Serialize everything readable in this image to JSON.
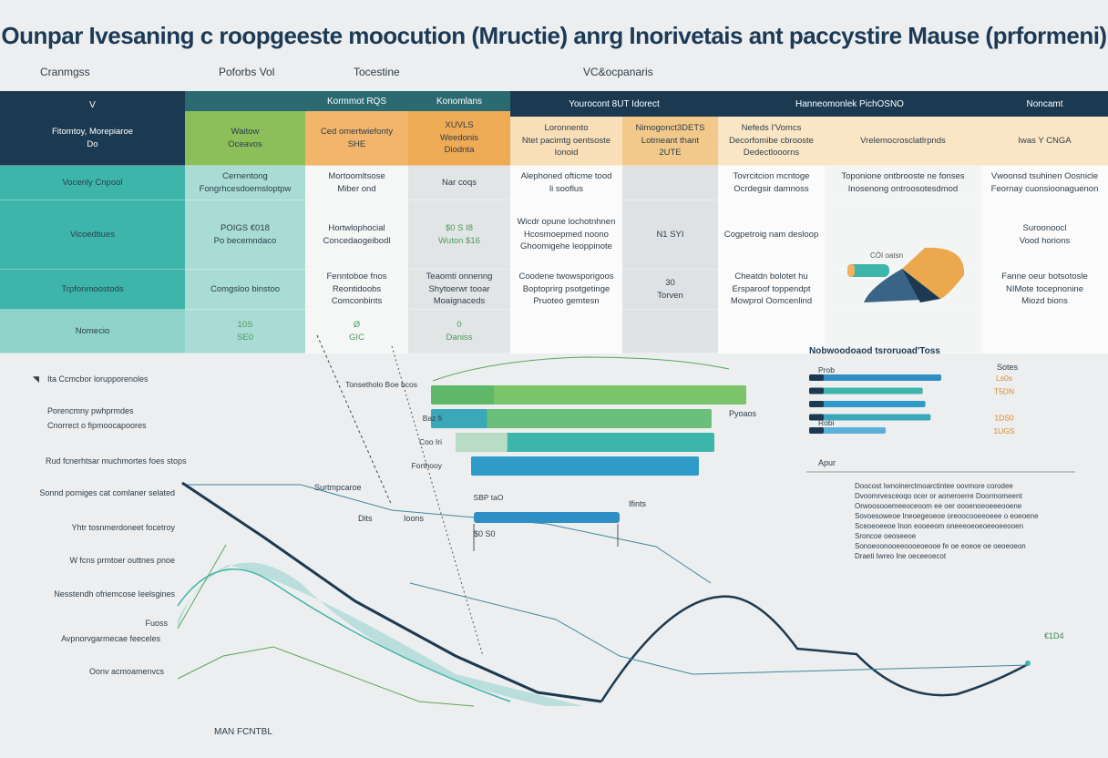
{
  "title": "Ounpar Ivesaning c roopgeeste moocution (Mructie) anrg Inorivetais ant paccystire Mause (prformeni)",
  "subheaders": [
    "Cranmgss",
    "Poforbs Vol",
    "Tocestine",
    "VC&ocpanaris"
  ],
  "band_labels": {
    "c2": "Kormmot RQS",
    "c3": "Konomlans",
    "c4": "Yourocont 8UT Idorect",
    "c6": "Hanneomonlek PichOSNO",
    "c8": "Noncamt",
    "c0": "V"
  },
  "header_cells": [
    "Fitomtoy, Morepiaroe\nDo",
    "Waitow\nOceavos",
    "Ced omertwiefonty\nSHE",
    "XUVLS\nWeedonis\nDiodnta",
    "Loronnento\nNtet pacimtg oentsoste\nIonoid",
    "Nimogonct3DETS\nLotmeant thant\n2UTE",
    "Nefeds I'Vomcs\nDecorfomibe cbrooste\nDedectlooorns",
    "Vrelemocrosclatlrpnds",
    "Iwas Y CNGA"
  ],
  "rows": [
    [
      "Vocenly Cnpool",
      "Cernentong\nFongrhcesdoemsloptpw",
      "Mortoomltsose\nMiber ond",
      "Nar coqs",
      "Alephoned ofticme tood\nli sooflus",
      "",
      "Tovrcitcion mcntoge\nOcrdegsir damnoss",
      "Toponione ontbrooste ne fonses\nInosenong ontroosotesdmod",
      "Vwoonsd tsuhinen Oosnicle\nFeornay cuonsioonaguenon"
    ],
    [
      "Vicoedtiues",
      "POIGS €018\nPo becemndaco",
      "Hortwlophocial\nConcedaogeibodl",
      "$0 S I8\nWuton $16",
      "Wicdr opune lochotnhnen\nHcosmoepmed noono\nGhoomigehe leoppinote",
      "N1 SYI",
      "Cogpetroig nam desloop",
      "",
      "Suroonoocl\nVood horions"
    ],
    [
      "Trpfonmoostods",
      "Comgsloo binstoo",
      "Fenntoboe fnos\nReontidoobs\nComconbints",
      "Teaomti onnenng\nShytoerwr tooar\nMoaignaceds",
      "Coodene twowsporigoos\nBoptoprirg psotgetinge\nPruoteo gemtesn",
      "30\nTorven",
      "Cheatdn bolotet hu\nErsparoof toppendpt\nMowprol Oomcenlind",
      "",
      "Fanne oeur botsotosle\nNIMote tocepnonine\nMiozd bions"
    ],
    [
      "Nomecio",
      "10S\nSE0",
      "Ø\nGIC",
      "0\nDaniss",
      "",
      "",
      "",
      "",
      ""
    ]
  ],
  "pie_label": "CÓI oatsn",
  "legend": [
    "Ita Ccmcbor lorupporenoles",
    "Porencmny pwhprmdes",
    "Cnorrect o fipmoocapoores"
  ],
  "left_heading": "Rud fcnerhtsar muchmortes foes stops",
  "left_axis": [
    "Sonnd porniges cat comlaner selated",
    "Yhtr tosnmerdoneet focetroy",
    "W fcns prmtoer outtnes pnoe",
    "Nesstendh ofriemcose Ieelsgines",
    "Fuoss",
    "Avpnorvgarmecae feeceles",
    "Oonv acmoamenvcs"
  ],
  "bottom_label": "MAN FCNTBL",
  "line_value": "€1D4",
  "colors": {
    "navy": "#1b3a52",
    "teal": "#3db5aa",
    "green": "#7fbf5a",
    "orange": "#f2b061",
    "blue": "#2f9bc9"
  },
  "chart_data": [
    {
      "type": "bar",
      "orientation": "horizontal",
      "categories": [
        "Tonsetholo Boe bcos",
        "Baz fi",
        "Coo Iri",
        "Forthooy",
        "SBP taO"
      ],
      "values": [
        100,
        89,
        89,
        72,
        46
      ],
      "annotations": [
        "Pyoaos",
        "Surtmpcaroe",
        "Dits",
        "Ioons",
        "Ifints",
        "$0 S0"
      ]
    },
    {
      "type": "bar",
      "orientation": "horizontal",
      "title": "Nobwoodoaod tsroruoad'Toss",
      "categories": [
        "Prob",
        "",
        "",
        "",
        "Robi"
      ],
      "values": [
        100,
        86,
        88,
        92,
        58
      ],
      "value_header": "Sotes",
      "value_labels": [
        "Ls0s",
        "T5DN",
        "",
        "1DS0",
        "1UGS"
      ],
      "extra_label": "Apur"
    },
    {
      "type": "line",
      "series": [
        {
          "values": [
            88,
            62,
            40,
            28,
            20,
            10,
            6,
            5
          ]
        },
        {
          "values": [
            70,
            60,
            52,
            45,
            38,
            30,
            18,
            12,
            40,
            55,
            30,
            22,
            35
          ]
        }
      ]
    }
  ],
  "notes": [
    "Doocost Iwnoinerclmoarctintee oovmore corodee",
    "Dvoomrvesceoqo ocer or aoneroerre Doormomeent",
    "Orwoosooemeeoceoom ee oer oooenoeoeeeooene",
    "Sovoesoweoe Ineoegeoeoe oreoocooeeoeee o eoeoene",
    "Sceoeoeeoe Inon eooeeom oneeeoeoeoeeoeeooen",
    "Sroncoe oeoseeoe",
    "Sonoeoonooeeoooeoeooe fe oe eoeoe oe oeoeoeon",
    "Draeti Iwreo Ine oeceeoecot"
  ]
}
